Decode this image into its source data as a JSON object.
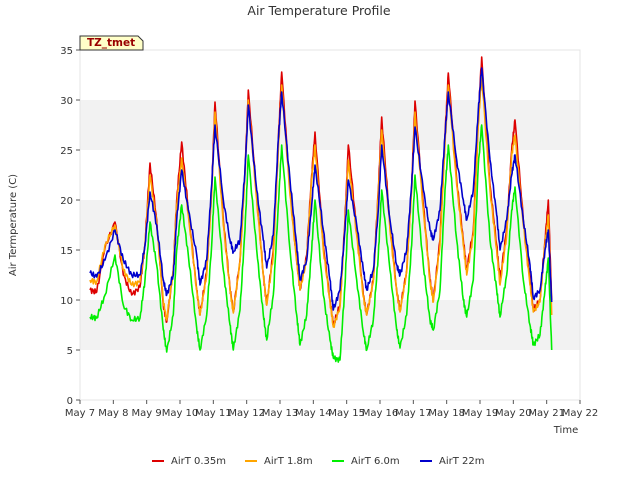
{
  "chart_data": {
    "type": "line",
    "title": "Air Temperature Profile",
    "xlabel": "Time",
    "ylabel": "Air Termperature (C)",
    "badge": "TZ_tmet",
    "xlim": [
      7,
      22
    ],
    "ylim": [
      0,
      35
    ],
    "yticks": [
      0,
      5,
      10,
      15,
      20,
      25,
      30,
      35
    ],
    "xticks": [
      7,
      8,
      9,
      10,
      11,
      12,
      13,
      14,
      15,
      16,
      17,
      18,
      19,
      20,
      21,
      22
    ],
    "xtick_labels": [
      "May 7",
      "May 8",
      "May 9",
      "May 10",
      "May 11",
      "May 12",
      "May 13",
      "May 14",
      "May 15",
      "May 16",
      "May 17",
      "May 18",
      "May 19",
      "May 20",
      "May 21",
      "May 22"
    ],
    "grid": "horizontal bands",
    "legend_position": "bottom",
    "series": [
      {
        "name": "AirT 0.35m",
        "color": "#dd0000",
        "x": [
          7.3,
          7.5,
          7.75,
          8.05,
          8.3,
          8.55,
          8.8,
          8.95,
          9.1,
          9.3,
          9.5,
          9.6,
          9.8,
          9.9,
          10.05,
          10.25,
          10.5,
          10.6,
          10.8,
          10.95,
          11.05,
          11.3,
          11.5,
          11.6,
          11.8,
          11.95,
          12.05,
          12.3,
          12.5,
          12.6,
          12.8,
          12.95,
          13.05,
          13.3,
          13.5,
          13.6,
          13.8,
          13.95,
          14.05,
          14.3,
          14.5,
          14.6,
          14.8,
          14.95,
          15.05,
          15.3,
          15.5,
          15.6,
          15.8,
          15.95,
          16.05,
          16.3,
          16.5,
          16.6,
          16.8,
          16.95,
          17.05,
          17.3,
          17.5,
          17.6,
          17.8,
          17.95,
          18.05,
          18.3,
          18.5,
          18.6,
          18.8,
          18.95,
          19.05,
          19.3,
          19.5,
          19.6,
          19.8,
          19.95,
          20.05,
          20.3,
          20.5,
          20.6,
          20.8,
          20.95,
          21.05,
          21.15
        ],
        "y": [
          11,
          10.8,
          15.2,
          17.8,
          12.5,
          10.5,
          11.3,
          15.5,
          23.7,
          18,
          9.5,
          7.8,
          13,
          20,
          25.8,
          19,
          11,
          8.5,
          12.8,
          21,
          29.8,
          18,
          11.2,
          8.8,
          14,
          23,
          31,
          20.5,
          12.5,
          9.5,
          15,
          26,
          32.8,
          21,
          14,
          11,
          14.5,
          22.5,
          26.8,
          15.5,
          10,
          7.5,
          9.5,
          18,
          25.5,
          17,
          10.5,
          8.5,
          12,
          21,
          28.3,
          17.5,
          11,
          9,
          13,
          21.5,
          29.9,
          19.5,
          12,
          10,
          16,
          26.5,
          32.7,
          22,
          16,
          13,
          17,
          28.5,
          34.3,
          21.5,
          15.5,
          12,
          17,
          25,
          28,
          18,
          12,
          9,
          10,
          16,
          20,
          10
        ]
      },
      {
        "name": "AirT 1.8m",
        "color": "#ffa500",
        "x": [
          7.3,
          7.5,
          7.75,
          8.05,
          8.3,
          8.55,
          8.8,
          8.95,
          9.1,
          9.3,
          9.5,
          9.6,
          9.8,
          9.9,
          10.05,
          10.25,
          10.5,
          10.6,
          10.8,
          10.95,
          11.05,
          11.3,
          11.5,
          11.6,
          11.8,
          11.95,
          12.05,
          12.3,
          12.5,
          12.6,
          12.8,
          12.95,
          13.05,
          13.3,
          13.5,
          13.6,
          13.8,
          13.95,
          14.05,
          14.3,
          14.5,
          14.6,
          14.8,
          14.95,
          15.05,
          15.3,
          15.5,
          15.6,
          15.8,
          15.95,
          16.05,
          16.3,
          16.5,
          16.6,
          16.8,
          16.95,
          17.05,
          17.3,
          17.5,
          17.6,
          17.8,
          17.95,
          18.05,
          18.3,
          18.5,
          18.6,
          18.8,
          18.95,
          19.05,
          19.3,
          19.5,
          19.6,
          19.8,
          19.95,
          20.05,
          20.3,
          20.5,
          20.6,
          20.8,
          20.95,
          21.05,
          21.15
        ],
        "y": [
          12,
          11.8,
          15.5,
          17.5,
          13,
          11.5,
          11.8,
          15.5,
          22.5,
          17.5,
          9.8,
          8,
          13,
          19.5,
          24.2,
          18.5,
          11,
          8.5,
          12.5,
          20.5,
          28.8,
          17.5,
          11,
          8.7,
          13.8,
          22.5,
          30,
          20,
          12.5,
          9.5,
          14.5,
          25,
          31.5,
          20.5,
          13.8,
          11,
          14,
          22,
          25.5,
          15,
          9.8,
          7.3,
          9.3,
          17.5,
          24,
          16.5,
          10.3,
          8.5,
          11.8,
          20.5,
          27,
          17,
          10.8,
          8.8,
          12.8,
          21,
          28.8,
          19,
          11.8,
          9.8,
          15.5,
          25.5,
          31.5,
          21.5,
          15.5,
          12.5,
          16.5,
          27.5,
          32.5,
          21,
          15,
          11.5,
          16.5,
          24.5,
          26.5,
          17.5,
          11.5,
          8.8,
          9.8,
          15.5,
          18.5,
          8.5
        ]
      },
      {
        "name": "AirT 6.0m",
        "color": "#00ee00",
        "x": [
          7.3,
          7.5,
          7.75,
          8.05,
          8.3,
          8.55,
          8.8,
          8.95,
          9.1,
          9.3,
          9.5,
          9.6,
          9.8,
          9.9,
          10.05,
          10.25,
          10.5,
          10.6,
          10.8,
          10.95,
          11.05,
          11.3,
          11.5,
          11.6,
          11.8,
          11.95,
          12.05,
          12.3,
          12.5,
          12.6,
          12.8,
          12.95,
          13.05,
          13.3,
          13.5,
          13.6,
          13.8,
          13.95,
          14.05,
          14.3,
          14.5,
          14.6,
          14.8,
          14.95,
          15.05,
          15.3,
          15.5,
          15.6,
          15.8,
          15.95,
          16.05,
          16.3,
          16.5,
          16.6,
          16.8,
          16.95,
          17.05,
          17.3,
          17.5,
          17.6,
          17.8,
          17.95,
          18.05,
          18.3,
          18.5,
          18.6,
          18.8,
          18.95,
          19.05,
          19.3,
          19.5,
          19.6,
          19.8,
          19.95,
          20.05,
          20.3,
          20.5,
          20.6,
          20.8,
          20.95,
          21.05,
          21.15
        ],
        "y": [
          8.3,
          8.2,
          10.5,
          14.5,
          9.5,
          8,
          8.2,
          12,
          17.8,
          13.5,
          7,
          4.8,
          8.5,
          15,
          19.5,
          14.5,
          7.2,
          5,
          8.5,
          15.5,
          22.3,
          13,
          7.5,
          5,
          9,
          17,
          24.5,
          15,
          8.5,
          6,
          10.5,
          19.5,
          25.5,
          15,
          8.5,
          5.5,
          8.5,
          15,
          20,
          10.5,
          6,
          4.2,
          4,
          11.5,
          19,
          12,
          6.8,
          5,
          8,
          14.5,
          21,
          13,
          7,
          5.2,
          8.5,
          15.5,
          22.5,
          13.5,
          8,
          7,
          11,
          21,
          25.5,
          16,
          10,
          8.3,
          12,
          23.5,
          27.5,
          16,
          11,
          8.3,
          12.5,
          19,
          21.3,
          12,
          7.5,
          5.5,
          6.5,
          11,
          14.2,
          5
        ]
      },
      {
        "name": "AirT 22m",
        "color": "#0000cc",
        "x": [
          7.3,
          7.5,
          7.75,
          8.05,
          8.3,
          8.55,
          8.8,
          8.95,
          9.1,
          9.3,
          9.5,
          9.6,
          9.8,
          9.9,
          10.05,
          10.25,
          10.5,
          10.6,
          10.8,
          10.95,
          11.05,
          11.3,
          11.5,
          11.6,
          11.8,
          11.95,
          12.05,
          12.3,
          12.5,
          12.6,
          12.8,
          12.95,
          13.05,
          13.3,
          13.5,
          13.6,
          13.8,
          13.95,
          14.05,
          14.3,
          14.5,
          14.6,
          14.8,
          14.95,
          15.05,
          15.3,
          15.5,
          15.6,
          15.8,
          15.95,
          16.05,
          16.3,
          16.5,
          16.6,
          16.8,
          16.95,
          17.05,
          17.3,
          17.5,
          17.6,
          17.8,
          17.95,
          18.05,
          18.3,
          18.5,
          18.6,
          18.8,
          18.95,
          19.05,
          19.3,
          19.5,
          19.6,
          19.8,
          19.95,
          20.05,
          20.3,
          20.5,
          20.6,
          20.8,
          20.95,
          21.05,
          21.15
        ],
        "y": [
          12.7,
          12.3,
          14,
          17,
          14,
          12.5,
          12.5,
          15.5,
          20.8,
          17.5,
          12,
          10.5,
          12.5,
          18,
          23,
          19,
          14.5,
          11.5,
          14,
          21.5,
          27.5,
          20,
          16,
          14.8,
          16,
          23,
          29.5,
          21,
          16,
          13.2,
          16.5,
          26,
          30.8,
          22,
          15.5,
          12,
          14,
          19.5,
          23.5,
          17,
          12,
          9,
          11,
          17,
          22,
          17.5,
          13,
          11,
          13,
          19,
          25.5,
          18,
          13.5,
          12.5,
          15,
          21.5,
          27.3,
          21,
          17,
          16,
          19,
          26.5,
          30.8,
          24,
          20,
          18,
          21,
          29,
          33.2,
          24,
          18.5,
          15,
          18,
          22.5,
          24.5,
          18,
          13.5,
          10.2,
          11,
          15,
          17,
          9.8
        ]
      }
    ]
  }
}
